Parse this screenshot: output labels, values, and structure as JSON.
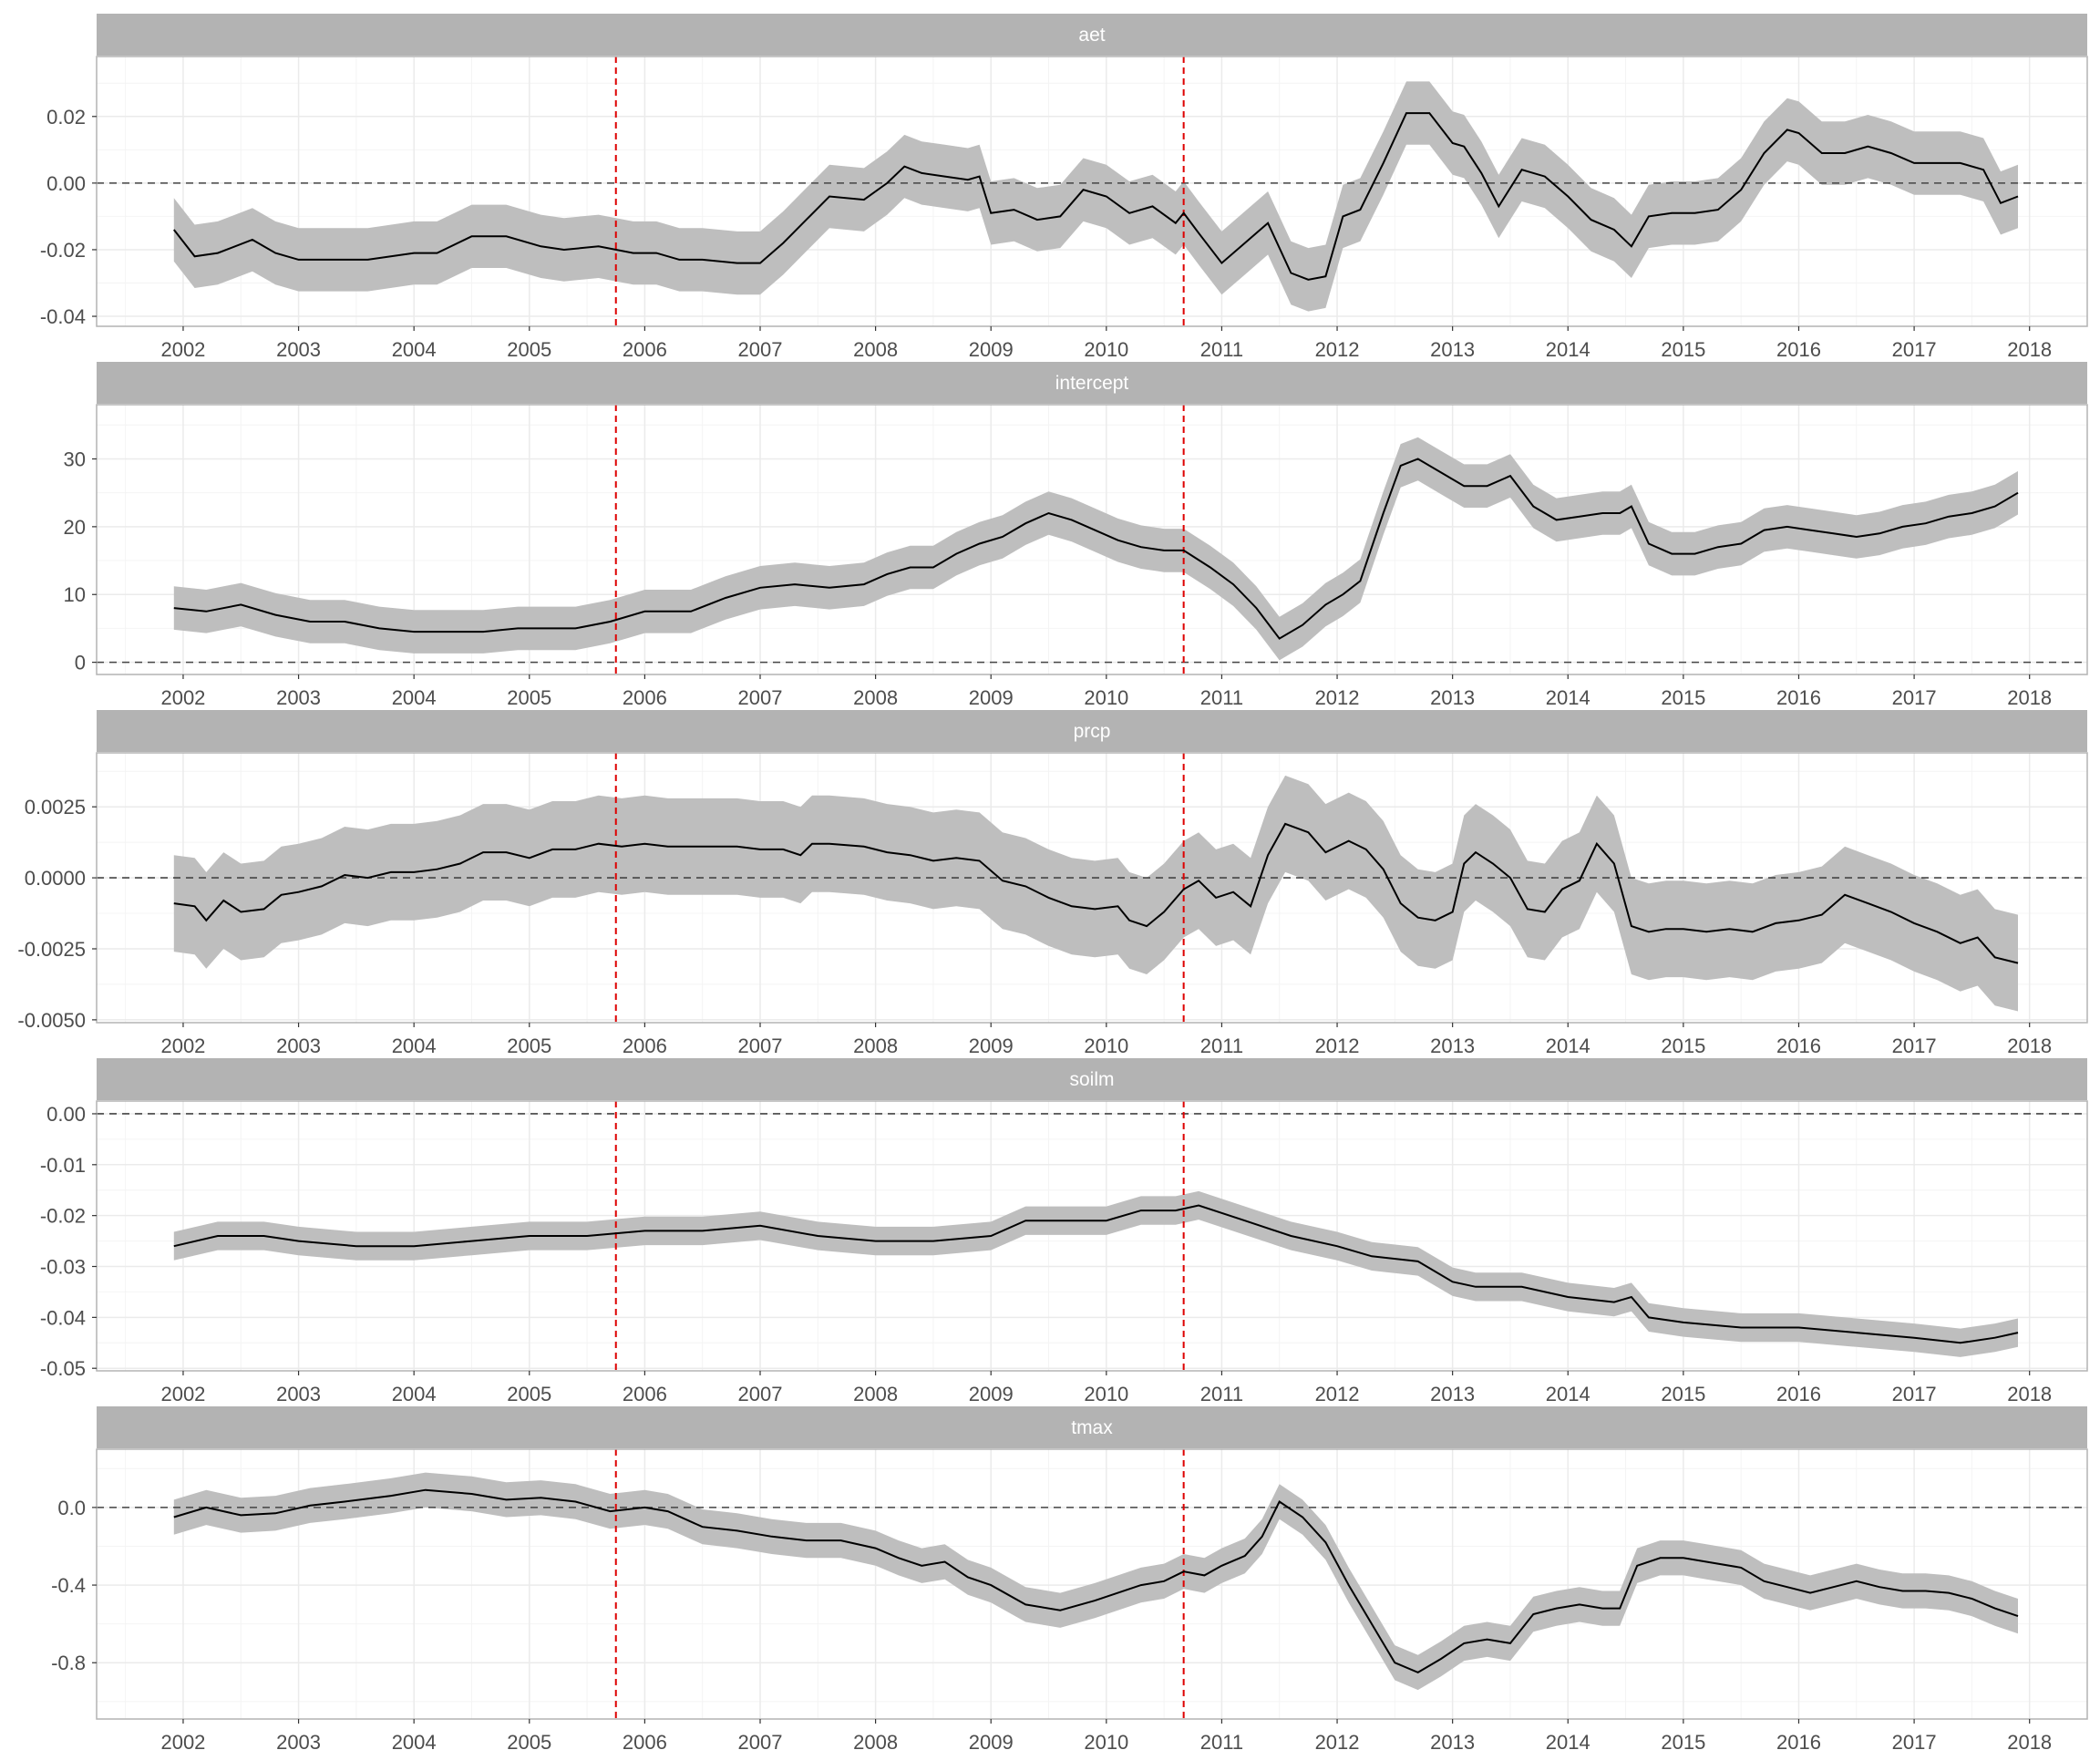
{
  "colors": {
    "band": "#bebebe",
    "line": "#000000",
    "strip": "#b3b3b3",
    "grid_major": "#ebebeb",
    "grid_minor": "#f4f4f4",
    "event_line": "#dd0000",
    "zero_line": "#444444",
    "panel_border": "#b3b3b3"
  },
  "chart_data": [
    {
      "type": "line",
      "title": "aet",
      "xlim": [
        2001.25,
        2018.5
      ],
      "x_ticks": [
        2002,
        2003,
        2004,
        2005,
        2006,
        2007,
        2008,
        2009,
        2010,
        2011,
        2012,
        2013,
        2014,
        2015,
        2016,
        2017,
        2018
      ],
      "x_tick_labels": [
        "2002",
        "2003",
        "2004",
        "2005",
        "2006",
        "2007",
        "2008",
        "2009",
        "2010",
        "2011",
        "2012",
        "2013",
        "2014",
        "2015",
        "2016",
        "2017",
        "2018"
      ],
      "ylim": [
        -0.043,
        0.038
      ],
      "y_ticks": [
        -0.04,
        -0.02,
        0.0,
        0.02
      ],
      "y_tick_labels": [
        "-0.04",
        "-0.02",
        "0.00",
        "0.02"
      ],
      "reference_lines": {
        "horizontal_dashed": 0,
        "vertical_red_dashed": [
          2005.75,
          2010.67
        ]
      },
      "grid": true,
      "x": [
        2001.92,
        2002.1,
        2002.3,
        2002.6,
        2002.8,
        2003.0,
        2003.3,
        2003.6,
        2004.0,
        2004.2,
        2004.5,
        2004.8,
        2005.1,
        2005.3,
        2005.6,
        2005.9,
        2006.1,
        2006.3,
        2006.5,
        2006.8,
        2007.0,
        2007.2,
        2007.4,
        2007.6,
        2007.9,
        2008.1,
        2008.25,
        2008.4,
        2008.6,
        2008.8,
        2008.9,
        2009.0,
        2009.2,
        2009.4,
        2009.6,
        2009.8,
        2010.0,
        2010.2,
        2010.4,
        2010.6,
        2010.67,
        2010.8,
        2011.0,
        2011.2,
        2011.4,
        2011.6,
        2011.75,
        2011.9,
        2012.05,
        2012.2,
        2012.4,
        2012.6,
        2012.8,
        2013.0,
        2013.1,
        2013.25,
        2013.4,
        2013.6,
        2013.8,
        2014.0,
        2014.2,
        2014.4,
        2014.55,
        2014.7,
        2014.9,
        2015.1,
        2015.3,
        2015.5,
        2015.7,
        2015.9,
        2016.0,
        2016.2,
        2016.4,
        2016.6,
        2016.8,
        2017.0,
        2017.2,
        2017.4,
        2017.6,
        2017.75,
        2017.9
      ],
      "y": [
        -0.014,
        -0.022,
        -0.021,
        -0.017,
        -0.021,
        -0.023,
        -0.023,
        -0.023,
        -0.021,
        -0.021,
        -0.016,
        -0.016,
        -0.019,
        -0.02,
        -0.019,
        -0.021,
        -0.021,
        -0.023,
        -0.023,
        -0.024,
        -0.024,
        -0.018,
        -0.011,
        -0.004,
        -0.005,
        0.0,
        0.005,
        0.003,
        0.002,
        0.001,
        0.002,
        -0.009,
        -0.008,
        -0.011,
        -0.01,
        -0.002,
        -0.004,
        -0.009,
        -0.007,
        -0.012,
        -0.009,
        -0.015,
        -0.024,
        -0.018,
        -0.012,
        -0.027,
        -0.029,
        -0.028,
        -0.01,
        -0.008,
        0.006,
        0.021,
        0.021,
        0.012,
        0.011,
        0.003,
        -0.007,
        0.004,
        0.002,
        -0.004,
        -0.011,
        -0.014,
        -0.019,
        -0.01,
        -0.009,
        -0.009,
        -0.008,
        -0.002,
        0.009,
        0.016,
        0.015,
        0.009,
        0.009,
        0.011,
        0.009,
        0.006,
        0.006,
        0.006,
        0.004,
        -0.006,
        -0.004
      ],
      "band_halfwidth": 0.0095
    },
    {
      "type": "line",
      "title": "intercept",
      "xlim": [
        2001.25,
        2018.5
      ],
      "x_ticks": [
        2002,
        2003,
        2004,
        2005,
        2006,
        2007,
        2008,
        2009,
        2010,
        2011,
        2012,
        2013,
        2014,
        2015,
        2016,
        2017,
        2018
      ],
      "x_tick_labels": [
        "2002",
        "2003",
        "2004",
        "2005",
        "2006",
        "2007",
        "2008",
        "2009",
        "2010",
        "2011",
        "2012",
        "2013",
        "2014",
        "2015",
        "2016",
        "2017",
        "2018"
      ],
      "ylim": [
        -1.8,
        38.0
      ],
      "y_ticks": [
        0,
        10,
        20,
        30
      ],
      "y_tick_labels": [
        "0",
        "10",
        "20",
        "30"
      ],
      "reference_lines": {
        "horizontal_dashed": 0,
        "vertical_red_dashed": [
          2005.75,
          2010.67
        ]
      },
      "grid": true,
      "x": [
        2001.92,
        2002.2,
        2002.5,
        2002.8,
        2003.1,
        2003.4,
        2003.7,
        2004.0,
        2004.3,
        2004.6,
        2004.9,
        2005.1,
        2005.4,
        2005.7,
        2006.0,
        2006.2,
        2006.4,
        2006.7,
        2007.0,
        2007.3,
        2007.6,
        2007.9,
        2008.1,
        2008.3,
        2008.5,
        2008.7,
        2008.9,
        2009.1,
        2009.3,
        2009.5,
        2009.7,
        2009.9,
        2010.1,
        2010.3,
        2010.5,
        2010.67,
        2010.9,
        2011.1,
        2011.3,
        2011.5,
        2011.7,
        2011.9,
        2012.05,
        2012.2,
        2012.4,
        2012.55,
        2012.7,
        2012.9,
        2013.1,
        2013.3,
        2013.5,
        2013.7,
        2013.9,
        2014.1,
        2014.3,
        2014.45,
        2014.55,
        2014.7,
        2014.9,
        2015.1,
        2015.3,
        2015.5,
        2015.7,
        2015.9,
        2016.1,
        2016.3,
        2016.5,
        2016.7,
        2016.9,
        2017.1,
        2017.3,
        2017.5,
        2017.7,
        2017.9
      ],
      "y": [
        8.0,
        7.5,
        8.5,
        7.0,
        6.0,
        6.0,
        5.0,
        4.5,
        4.5,
        4.5,
        5.0,
        5.0,
        5.0,
        6.0,
        7.5,
        7.5,
        7.5,
        9.5,
        11.0,
        11.5,
        11.0,
        11.5,
        13.0,
        14.0,
        14.0,
        16.0,
        17.5,
        18.5,
        20.5,
        22.0,
        21.0,
        19.5,
        18.0,
        17.0,
        16.5,
        16.5,
        14.0,
        11.5,
        8.0,
        3.5,
        5.5,
        8.5,
        10.0,
        12.0,
        22.0,
        29.0,
        30.0,
        28.0,
        26.0,
        26.0,
        27.5,
        23.0,
        21.0,
        21.5,
        22.0,
        22.0,
        23.0,
        17.5,
        16.0,
        16.0,
        17.0,
        17.5,
        19.5,
        20.0,
        19.5,
        19.0,
        18.5,
        19.0,
        20.0,
        20.5,
        21.5,
        22.0,
        23.0,
        25.0
      ],
      "band_halfwidth": 3.2
    },
    {
      "type": "line",
      "title": "prcp",
      "xlim": [
        2001.25,
        2018.5
      ],
      "x_ticks": [
        2002,
        2003,
        2004,
        2005,
        2006,
        2007,
        2008,
        2009,
        2010,
        2011,
        2012,
        2013,
        2014,
        2015,
        2016,
        2017,
        2018
      ],
      "x_tick_labels": [
        "2002",
        "2003",
        "2004",
        "2005",
        "2006",
        "2007",
        "2008",
        "2009",
        "2010",
        "2011",
        "2012",
        "2013",
        "2014",
        "2015",
        "2016",
        "2017",
        "2018"
      ],
      "ylim": [
        -0.0051,
        0.0044
      ],
      "y_ticks": [
        -0.005,
        -0.0025,
        0.0,
        0.0025
      ],
      "y_tick_labels": [
        "-0.0050",
        "-0.0025",
        "0.0000",
        "0.0025"
      ],
      "reference_lines": {
        "horizontal_dashed": 0,
        "vertical_red_dashed": [
          2005.75,
          2010.67
        ]
      },
      "grid": true,
      "x": [
        2001.92,
        2002.1,
        2002.2,
        2002.35,
        2002.5,
        2002.7,
        2002.85,
        2003.0,
        2003.2,
        2003.4,
        2003.6,
        2003.8,
        2004.0,
        2004.2,
        2004.4,
        2004.6,
        2004.8,
        2005.0,
        2005.2,
        2005.4,
        2005.6,
        2005.8,
        2006.0,
        2006.2,
        2006.5,
        2006.8,
        2007.0,
        2007.2,
        2007.35,
        2007.45,
        2007.6,
        2007.9,
        2008.1,
        2008.3,
        2008.5,
        2008.7,
        2008.9,
        2009.1,
        2009.3,
        2009.5,
        2009.7,
        2009.9,
        2010.1,
        2010.2,
        2010.35,
        2010.5,
        2010.67,
        2010.8,
        2010.95,
        2011.1,
        2011.25,
        2011.4,
        2011.55,
        2011.75,
        2011.9,
        2012.1,
        2012.25,
        2012.4,
        2012.55,
        2012.7,
        2012.85,
        2013.0,
        2013.1,
        2013.2,
        2013.35,
        2013.5,
        2013.65,
        2013.8,
        2013.95,
        2014.1,
        2014.25,
        2014.4,
        2014.55,
        2014.7,
        2014.85,
        2015.0,
        2015.2,
        2015.4,
        2015.6,
        2015.8,
        2016.0,
        2016.2,
        2016.4,
        2016.6,
        2016.8,
        2017.0,
        2017.2,
        2017.4,
        2017.55,
        2017.7,
        2017.9
      ],
      "y": [
        -0.0009,
        -0.001,
        -0.0015,
        -0.0008,
        -0.0012,
        -0.0011,
        -0.0006,
        -0.0005,
        -0.0003,
        0.0001,
        0.0,
        0.0002,
        0.0002,
        0.0003,
        0.0005,
        0.0009,
        0.0009,
        0.0007,
        0.001,
        0.001,
        0.0012,
        0.0011,
        0.0012,
        0.0011,
        0.0011,
        0.0011,
        0.001,
        0.001,
        0.0008,
        0.0012,
        0.0012,
        0.0011,
        0.0009,
        0.0008,
        0.0006,
        0.0007,
        0.0006,
        -0.0001,
        -0.0003,
        -0.0007,
        -0.001,
        -0.0011,
        -0.001,
        -0.0015,
        -0.0017,
        -0.0012,
        -0.0004,
        -0.0001,
        -0.0007,
        -0.0005,
        -0.001,
        0.0008,
        0.0019,
        0.0016,
        0.0009,
        0.0013,
        0.001,
        0.0003,
        -0.0009,
        -0.0014,
        -0.0015,
        -0.0012,
        0.0005,
        0.0009,
        0.0005,
        0.0,
        -0.0011,
        -0.0012,
        -0.0004,
        -0.0001,
        0.0012,
        0.0005,
        -0.0017,
        -0.0019,
        -0.0018,
        -0.0018,
        -0.0019,
        -0.0018,
        -0.0019,
        -0.0016,
        -0.0015,
        -0.0013,
        -0.0006,
        -0.0009,
        -0.0012,
        -0.0016,
        -0.0019,
        -0.0023,
        -0.0021,
        -0.0028,
        -0.003
      ],
      "band_halfwidth": 0.0017
    },
    {
      "type": "line",
      "title": "soilm",
      "xlim": [
        2001.25,
        2018.5
      ],
      "x_ticks": [
        2002,
        2003,
        2004,
        2005,
        2006,
        2007,
        2008,
        2009,
        2010,
        2011,
        2012,
        2013,
        2014,
        2015,
        2016,
        2017,
        2018
      ],
      "x_tick_labels": [
        "2002",
        "2003",
        "2004",
        "2005",
        "2006",
        "2007",
        "2008",
        "2009",
        "2010",
        "2011",
        "2012",
        "2013",
        "2014",
        "2015",
        "2016",
        "2017",
        "2018"
      ],
      "ylim": [
        -0.0505,
        0.0025
      ],
      "y_ticks": [
        -0.05,
        -0.04,
        -0.03,
        -0.02,
        -0.01,
        0.0
      ],
      "y_tick_labels": [
        "-0.05",
        "-0.04",
        "-0.03",
        "-0.02",
        "-0.01",
        "0.00"
      ],
      "reference_lines": {
        "horizontal_dashed": 0,
        "vertical_red_dashed": [
          2005.75,
          2010.67
        ]
      },
      "grid": true,
      "x": [
        2001.92,
        2002.3,
        2002.7,
        2003.0,
        2003.5,
        2004.0,
        2004.5,
        2005.0,
        2005.5,
        2006.0,
        2006.5,
        2007.0,
        2007.5,
        2008.0,
        2008.5,
        2009.0,
        2009.3,
        2009.7,
        2010.0,
        2010.3,
        2010.6,
        2010.8,
        2011.2,
        2011.6,
        2012.0,
        2012.3,
        2012.7,
        2013.0,
        2013.2,
        2013.6,
        2014.0,
        2014.4,
        2014.55,
        2014.7,
        2015.0,
        2015.5,
        2016.0,
        2016.5,
        2017.0,
        2017.4,
        2017.7,
        2017.9
      ],
      "y": [
        -0.026,
        -0.024,
        -0.024,
        -0.025,
        -0.026,
        -0.026,
        -0.025,
        -0.024,
        -0.024,
        -0.023,
        -0.023,
        -0.022,
        -0.024,
        -0.025,
        -0.025,
        -0.024,
        -0.021,
        -0.021,
        -0.021,
        -0.019,
        -0.019,
        -0.018,
        -0.021,
        -0.024,
        -0.026,
        -0.028,
        -0.029,
        -0.033,
        -0.034,
        -0.034,
        -0.036,
        -0.037,
        -0.036,
        -0.04,
        -0.041,
        -0.042,
        -0.042,
        -0.043,
        -0.044,
        -0.045,
        -0.044,
        -0.043
      ],
      "band_halfwidth": 0.0028
    },
    {
      "type": "line",
      "title": "tmax",
      "xlim": [
        2001.25,
        2018.5
      ],
      "x_ticks": [
        2002,
        2003,
        2004,
        2005,
        2006,
        2007,
        2008,
        2009,
        2010,
        2011,
        2012,
        2013,
        2014,
        2015,
        2016,
        2017,
        2018
      ],
      "x_tick_labels": [
        "2002",
        "2003",
        "2004",
        "2005",
        "2006",
        "2007",
        "2008",
        "2009",
        "2010",
        "2011",
        "2012",
        "2013",
        "2014",
        "2015",
        "2016",
        "2017",
        "2018"
      ],
      "ylim": [
        -1.09,
        0.3
      ],
      "y_ticks": [
        -0.8,
        -0.4,
        0.0
      ],
      "y_tick_labels": [
        "-0.8",
        "-0.4",
        "0.0"
      ],
      "reference_lines": {
        "horizontal_dashed": 0,
        "vertical_red_dashed": [
          2005.75,
          2010.67
        ]
      },
      "grid": true,
      "x": [
        2001.92,
        2002.2,
        2002.5,
        2002.8,
        2003.1,
        2003.4,
        2003.8,
        2004.1,
        2004.5,
        2004.8,
        2005.1,
        2005.4,
        2005.7,
        2006.0,
        2006.2,
        2006.5,
        2006.8,
        2007.1,
        2007.4,
        2007.7,
        2008.0,
        2008.2,
        2008.4,
        2008.6,
        2008.8,
        2009.0,
        2009.3,
        2009.6,
        2009.9,
        2010.1,
        2010.3,
        2010.5,
        2010.67,
        2010.85,
        2011.0,
        2011.2,
        2011.35,
        2011.5,
        2011.7,
        2011.9,
        2012.1,
        2012.3,
        2012.5,
        2012.7,
        2012.9,
        2013.1,
        2013.3,
        2013.5,
        2013.7,
        2013.9,
        2014.1,
        2014.3,
        2014.45,
        2014.6,
        2014.8,
        2015.0,
        2015.2,
        2015.5,
        2015.7,
        2015.9,
        2016.1,
        2016.3,
        2016.5,
        2016.7,
        2016.9,
        2017.1,
        2017.3,
        2017.5,
        2017.7,
        2017.9
      ],
      "y": [
        -0.05,
        0.0,
        -0.04,
        -0.03,
        0.01,
        0.03,
        0.06,
        0.09,
        0.07,
        0.04,
        0.05,
        0.03,
        -0.02,
        0.0,
        -0.02,
        -0.1,
        -0.12,
        -0.15,
        -0.17,
        -0.17,
        -0.21,
        -0.26,
        -0.3,
        -0.28,
        -0.36,
        -0.4,
        -0.5,
        -0.53,
        -0.48,
        -0.44,
        -0.4,
        -0.38,
        -0.33,
        -0.35,
        -0.3,
        -0.25,
        -0.15,
        0.03,
        -0.05,
        -0.18,
        -0.4,
        -0.6,
        -0.8,
        -0.85,
        -0.78,
        -0.7,
        -0.68,
        -0.7,
        -0.55,
        -0.52,
        -0.5,
        -0.52,
        -0.52,
        -0.3,
        -0.26,
        -0.26,
        -0.28,
        -0.31,
        -0.38,
        -0.41,
        -0.44,
        -0.41,
        -0.38,
        -0.41,
        -0.43,
        -0.43,
        -0.44,
        -0.47,
        -0.52,
        -0.56
      ],
      "band_halfwidth": 0.09
    }
  ]
}
